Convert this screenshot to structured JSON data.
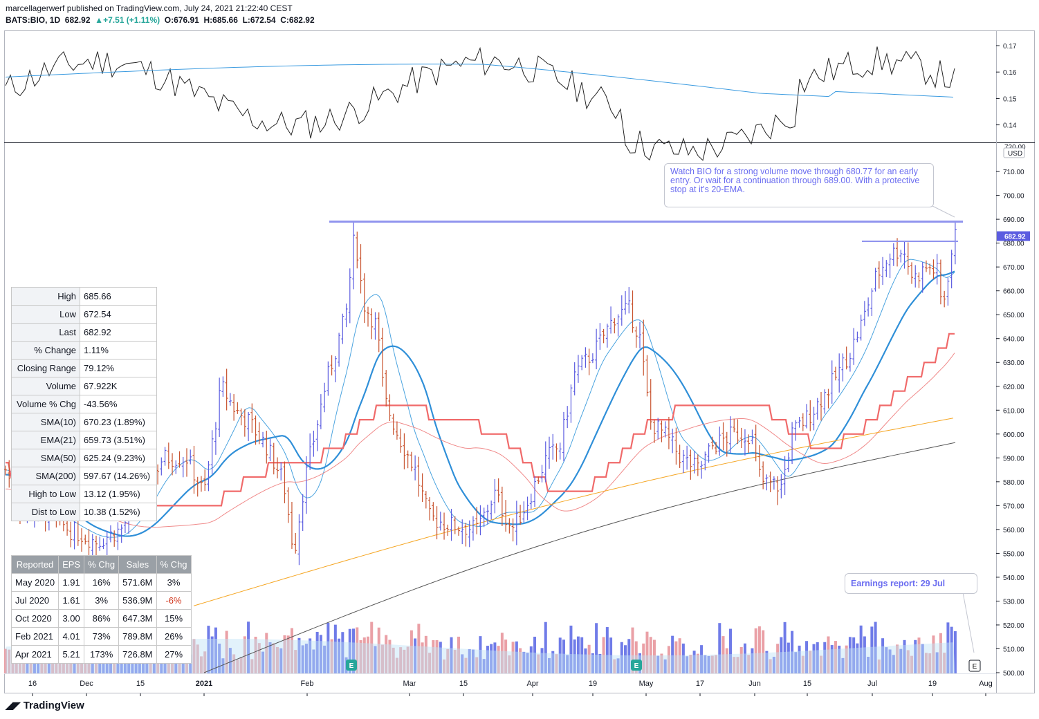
{
  "header": {
    "line1": "marcellagerwerf published on TradingView.com, July 24, 2021 21:22:40 CEST",
    "symbol": "BATS:BIO, 1D",
    "last": "682.92",
    "change": "+7.51 (+1.11%)",
    "open": "O:676.91",
    "high": "H:685.66",
    "low": "L:672.54",
    "close": "C:682.92"
  },
  "indicator_axis": [
    "0.17",
    "0.16",
    "0.15",
    "0.14"
  ],
  "price_axis": [
    "710.00",
    "700.00",
    "690.00",
    "680.00",
    "670.00",
    "660.00",
    "650.00",
    "640.00",
    "630.00",
    "620.00",
    "610.00",
    "600.00",
    "590.00",
    "580.00",
    "570.00",
    "560.00",
    "550.00",
    "540.00",
    "530.00",
    "520.00",
    "510.00",
    "500.00"
  ],
  "price_axis_partial": "720.00",
  "currency": "USD",
  "last_price_tag": "682.92",
  "date_axis": [
    "16",
    "Dec",
    "15",
    "2021",
    "Feb",
    "Mar",
    "15",
    "Apr",
    "19",
    "May",
    "17",
    "Jun",
    "15",
    "Jul",
    "19",
    "Aug"
  ],
  "stats_panel": [
    {
      "label": "High",
      "value": "685.66"
    },
    {
      "label": "Low",
      "value": "672.54"
    },
    {
      "label": "Last",
      "value": "682.92"
    },
    {
      "label": "% Change",
      "value": "1.11%"
    },
    {
      "label": "Closing Range",
      "value": "79.12%"
    },
    {
      "label": "Volume",
      "value": "67.922K"
    },
    {
      "label": "Volume % Chg",
      "value": "-43.56%"
    },
    {
      "label": "SMA(10)",
      "value": "670.23 (1.89%)"
    },
    {
      "label": "EMA(21)",
      "value": "659.73 (3.51%)"
    },
    {
      "label": "SMA(50)",
      "value": "625.24 (9.23%)"
    },
    {
      "label": "SMA(200)",
      "value": "597.67 (14.26%)"
    },
    {
      "label": "High to Low",
      "value": "13.12 (1.95%)"
    },
    {
      "label": "Dist to Low",
      "value": "10.38 (1.52%)"
    }
  ],
  "earnings_table": {
    "headers": [
      "Reported",
      "EPS",
      "% Chg",
      "Sales",
      "% Chg"
    ],
    "rows": [
      [
        "May 2020",
        "1.91",
        "16%",
        "571.6M",
        "3%"
      ],
      [
        "Jul 2020",
        "1.61",
        "3%",
        "536.9M",
        "-6%"
      ],
      [
        "Oct 2020",
        "3.00",
        "86%",
        "647.3M",
        "15%"
      ],
      [
        "Feb 2021",
        "4.01",
        "73%",
        "789.8M",
        "26%"
      ],
      [
        "Apr 2021",
        "5.21",
        "173%",
        "726.8M",
        "27%"
      ]
    ]
  },
  "callout_text": "Watch BIO for a strong volume move through 680.77 for an early entry. Or wait for a continuation through 689.00. With a protective stop at it's 20-EMA.",
  "earnings_note": "Earnings report: 29 Jul",
  "earnings_marker": "E",
  "logo_text": "TradingView",
  "colors": {
    "bar_up": "#5b5ce0",
    "bar_down": "#c8532f",
    "sma10": "#4aa3df",
    "ema21": "#2f8fd8",
    "sma50_step": "#f06a6a",
    "sma_pink": "#f08a8a",
    "sma_orange": "#f5a623",
    "sma200": "#555555",
    "vol_up": "#6f7be8",
    "vol_down": "#eaa0a6",
    "hline": "#8f93ee",
    "indicator": "#222222",
    "indicator_ma": "#3b9be0"
  },
  "chart_data": {
    "type": "ohlc",
    "y_range": [
      500,
      720
    ],
    "resistance_levels": [
      689.0,
      680.77
    ],
    "ma_last": {
      "sma10": 670.23,
      "ema21": 659.73,
      "sma50": 625.24,
      "sma200": 597.67
    }
  }
}
